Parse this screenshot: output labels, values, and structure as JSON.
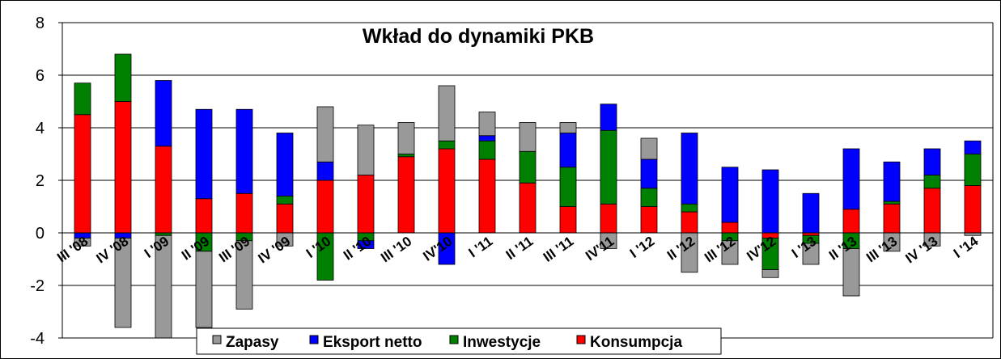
{
  "chart_data": {
    "type": "bar",
    "stacked": true,
    "title": "Wkład do dynamiki PKB",
    "xlabel": "",
    "ylabel": "",
    "ylim": [
      -4,
      8
    ],
    "yticks": [
      -4,
      -2,
      0,
      2,
      4,
      6,
      8
    ],
    "grid": true,
    "legend_position": "bottom",
    "categories": [
      "III '08",
      "IV '08",
      "I '09",
      "II '09",
      "III '09",
      "IV '09",
      "I '10",
      "II '10",
      "III '10",
      "IV'10",
      "I '11",
      "II '11",
      "III '11",
      "IV'11",
      "I '12",
      "II '12",
      "III '12",
      "IV'12",
      "I '13",
      "II '13",
      "III '13",
      "IV '13",
      "I '14"
    ],
    "series": [
      {
        "name": "Konsumpcja",
        "color": "#ff0000",
        "values": [
          4.5,
          5.0,
          3.3,
          1.3,
          1.5,
          1.1,
          2.0,
          2.2,
          2.9,
          3.2,
          2.8,
          1.9,
          1.0,
          1.1,
          1.0,
          0.8,
          0.4,
          -0.2,
          -0.1,
          0.9,
          1.1,
          1.7,
          1.8
        ]
      },
      {
        "name": "Inwestycje",
        "color": "#008000",
        "values": [
          1.2,
          1.8,
          -0.1,
          -0.7,
          -0.3,
          0.3,
          -1.8,
          -0.3,
          0.1,
          0.3,
          0.7,
          1.2,
          1.5,
          2.8,
          0.7,
          0.3,
          -0.3,
          -1.2,
          -0.3,
          -0.6,
          0.1,
          0.5,
          1.2
        ]
      },
      {
        "name": "Eksport netto",
        "color": "#0000ff",
        "values": [
          -0.2,
          -0.2,
          2.5,
          3.4,
          3.2,
          2.4,
          0.7,
          -0.3,
          0,
          -1.2,
          0.2,
          0,
          1.3,
          1.0,
          1.1,
          2.7,
          2.1,
          2.4,
          1.5,
          2.3,
          1.5,
          1.0,
          0.5
        ]
      },
      {
        "name": "Zapasy",
        "color": "#999999",
        "values": [
          -0.3,
          -3.4,
          -3.9,
          -2.9,
          -2.6,
          -0.5,
          2.1,
          1.9,
          1.2,
          2.1,
          0.9,
          1.1,
          0.4,
          -0.6,
          0.8,
          -1.5,
          -0.9,
          -0.3,
          -0.8,
          -1.8,
          -0.7,
          -0.5,
          -0.1
        ]
      }
    ],
    "legend_order": [
      "Zapasy",
      "Eksport netto",
      "Inwestycje",
      "Konsumpcja"
    ]
  }
}
